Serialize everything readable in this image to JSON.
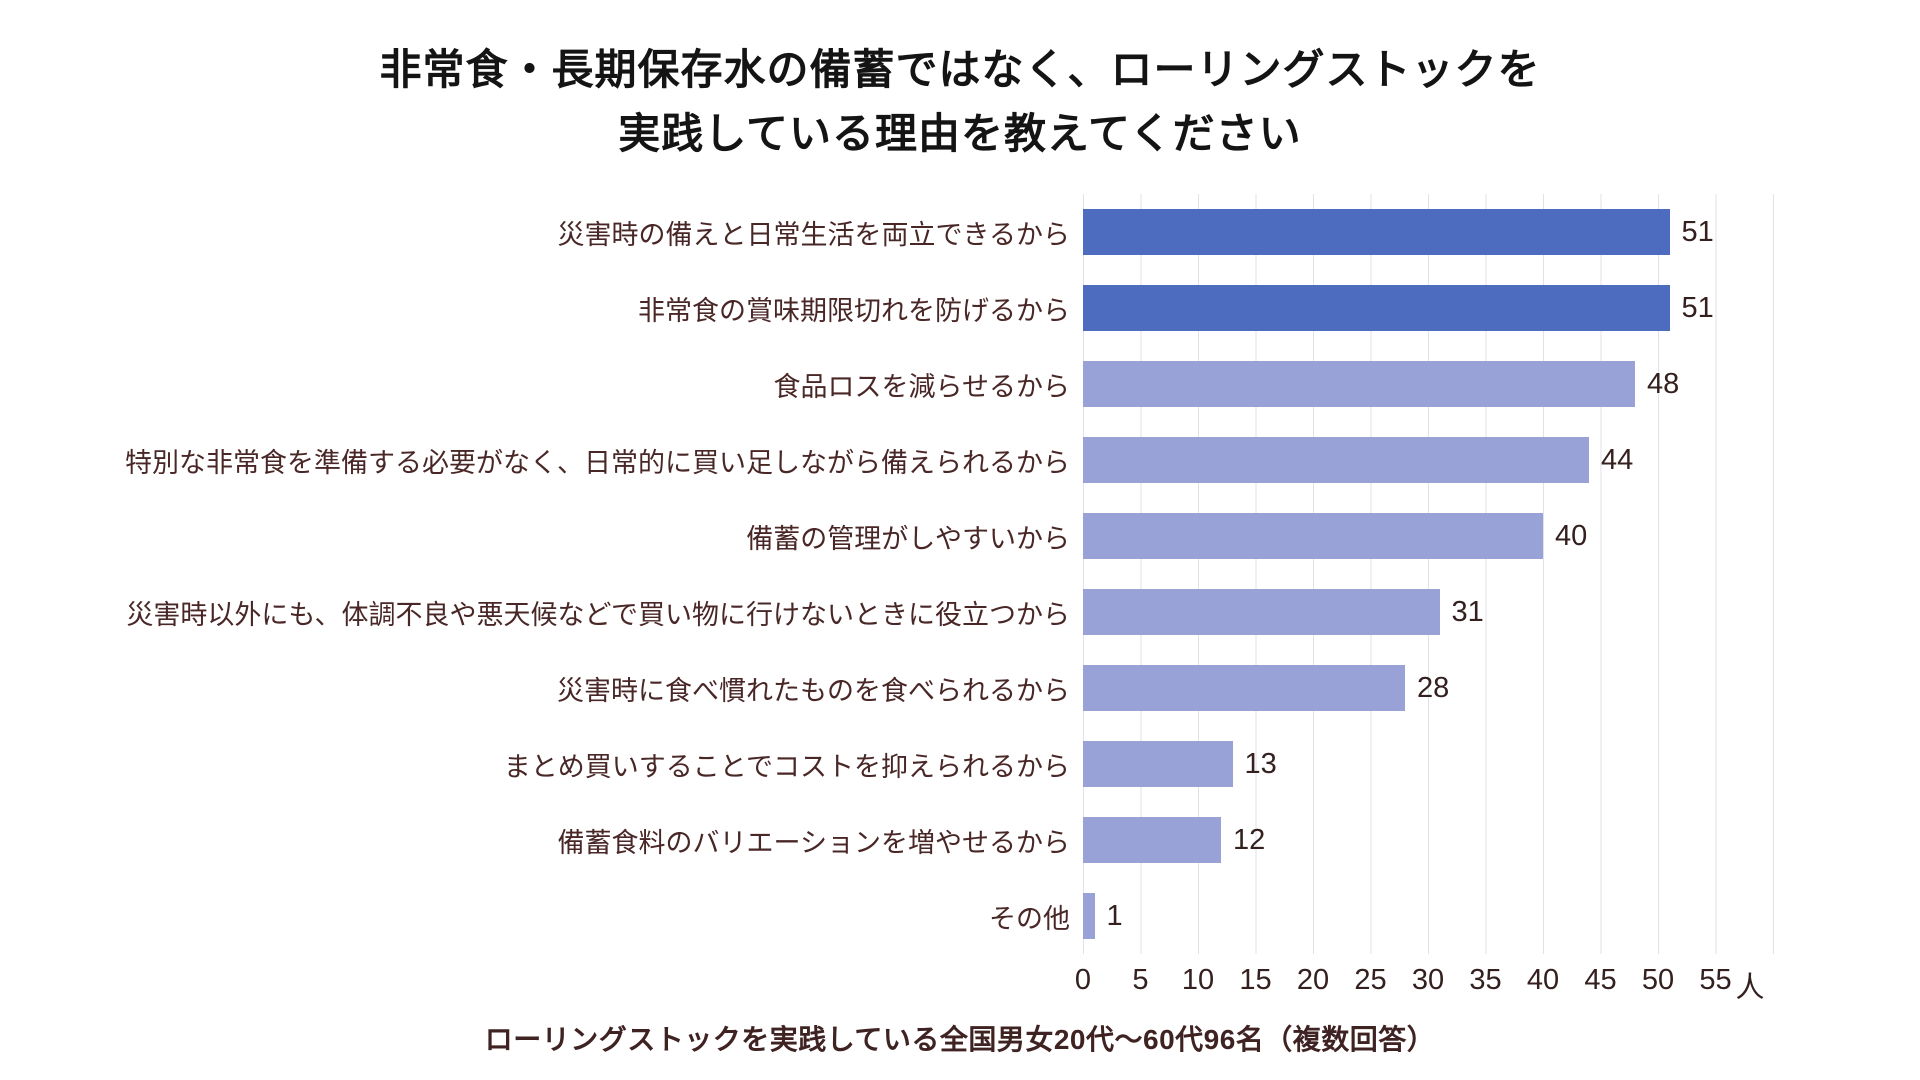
{
  "title": {
    "line1": "非常食・長期保存水の備蓄ではなく、ローリングストックを",
    "line2": "実践している理由を教えてください"
  },
  "source_note": "ローリングストックを実践している全国男女20代～60代96名（複数回答）",
  "axis": {
    "ticks": [
      "0",
      "5",
      "10",
      "15",
      "20",
      "25",
      "30",
      "35",
      "40",
      "45",
      "50",
      "55"
    ],
    "unit_suffix": "人",
    "max": 55
  },
  "colors": {
    "bar_emphasis": "#4d6cc0",
    "bar_normal": "#98a2d6",
    "gridline": "#e1e2e8",
    "category_text": "#4a2727",
    "value_text": "#33201f",
    "title_text": "#141414",
    "note_text": "#3f2222"
  },
  "bars": [
    {
      "label": "災害時の備えと日常生活を両立できるから",
      "value": 51,
      "emphasis": true
    },
    {
      "label": "非常食の賞味期限切れを防げるから",
      "value": 51,
      "emphasis": true
    },
    {
      "label": "食品ロスを減らせるから",
      "value": 48,
      "emphasis": false
    },
    {
      "label": "特別な非常食を準備する必要がなく、日常的に買い足しながら備えられるから",
      "value": 44,
      "emphasis": false
    },
    {
      "label": "備蓄の管理がしやすいから",
      "value": 40,
      "emphasis": false
    },
    {
      "label": "災害時以外にも、体調不良や悪天候などで買い物に行けないときに役立つから",
      "value": 31,
      "emphasis": false
    },
    {
      "label": "災害時に食べ慣れたものを食べられるから",
      "value": 28,
      "emphasis": false
    },
    {
      "label": "まとめ買いすることでコストを抑えられるから",
      "value": 13,
      "emphasis": false
    },
    {
      "label": "備蓄食料のバリエーションを増やせるから",
      "value": 12,
      "emphasis": false
    },
    {
      "label": "その他",
      "value": 1,
      "emphasis": false
    }
  ],
  "chart_data": {
    "type": "bar",
    "orientation": "horizontal",
    "title": "非常食・長期保存水の備蓄ではなく、ローリングストックを実践している理由を教えてください",
    "categories": [
      "災害時の備えと日常生活を両立できるから",
      "非常食の賞味期限切れを防げるから",
      "食品ロスを減らせるから",
      "特別な非常食を準備する必要がなく、日常的に買い足しながら備えられるから",
      "備蓄の管理がしやすいから",
      "災害時以外にも、体調不良や悪天候などで買い物に行けないときに役立つから",
      "災害時に食べ慣れたものを食べられるから",
      "まとめ買いすることでコストを抑えられるから",
      "備蓄食料のバリエーションを増やせるから",
      "その他"
    ],
    "values": [
      51,
      51,
      48,
      44,
      40,
      31,
      28,
      13,
      12,
      1
    ],
    "xlim": [
      0,
      55
    ],
    "x_ticks": [
      0,
      5,
      10,
      15,
      20,
      25,
      30,
      35,
      40,
      45,
      50,
      55
    ],
    "x_unit": "人",
    "grid": "vertical",
    "legend": "none",
    "highlight": "top two bars use darker blue",
    "note": "ローリングストックを実践している全国男女20代～60代96名（複数回答）"
  }
}
